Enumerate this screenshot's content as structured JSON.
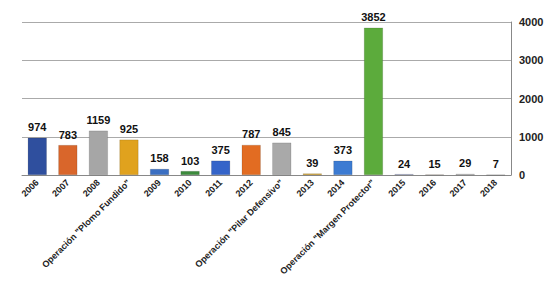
{
  "chart_data": {
    "type": "bar",
    "categories": [
      "2006",
      "2007",
      "2008",
      "Operación \"Plomo Fundido\"",
      "2009",
      "2010",
      "2011",
      "2012",
      "Operación \"Pilar Defensivo\"",
      "2013",
      "2014",
      "Operación \"Margen Protector\"",
      "2015",
      "2016",
      "2017",
      "2018"
    ],
    "values": [
      974,
      783,
      1159,
      925,
      158,
      103,
      375,
      787,
      845,
      39,
      373,
      3852,
      24,
      15,
      29,
      7
    ],
    "colors": [
      "#2f4f9e",
      "#d9662b",
      "#a6a6a6",
      "#e0a21e",
      "#3b6fc2",
      "#3d8b3d",
      "#3464c9",
      "#e26c22",
      "#a9a9a9",
      "#d9a21f",
      "#3c7bd2",
      "#5cab3c",
      "#8a95cc",
      "#e3a585",
      "#b5b5b5",
      "#e2c373"
    ],
    "ylim": [
      0,
      4000
    ],
    "yticks": [
      0,
      1000,
      2000,
      3000,
      4000
    ],
    "grid": true,
    "data_labels": true
  }
}
